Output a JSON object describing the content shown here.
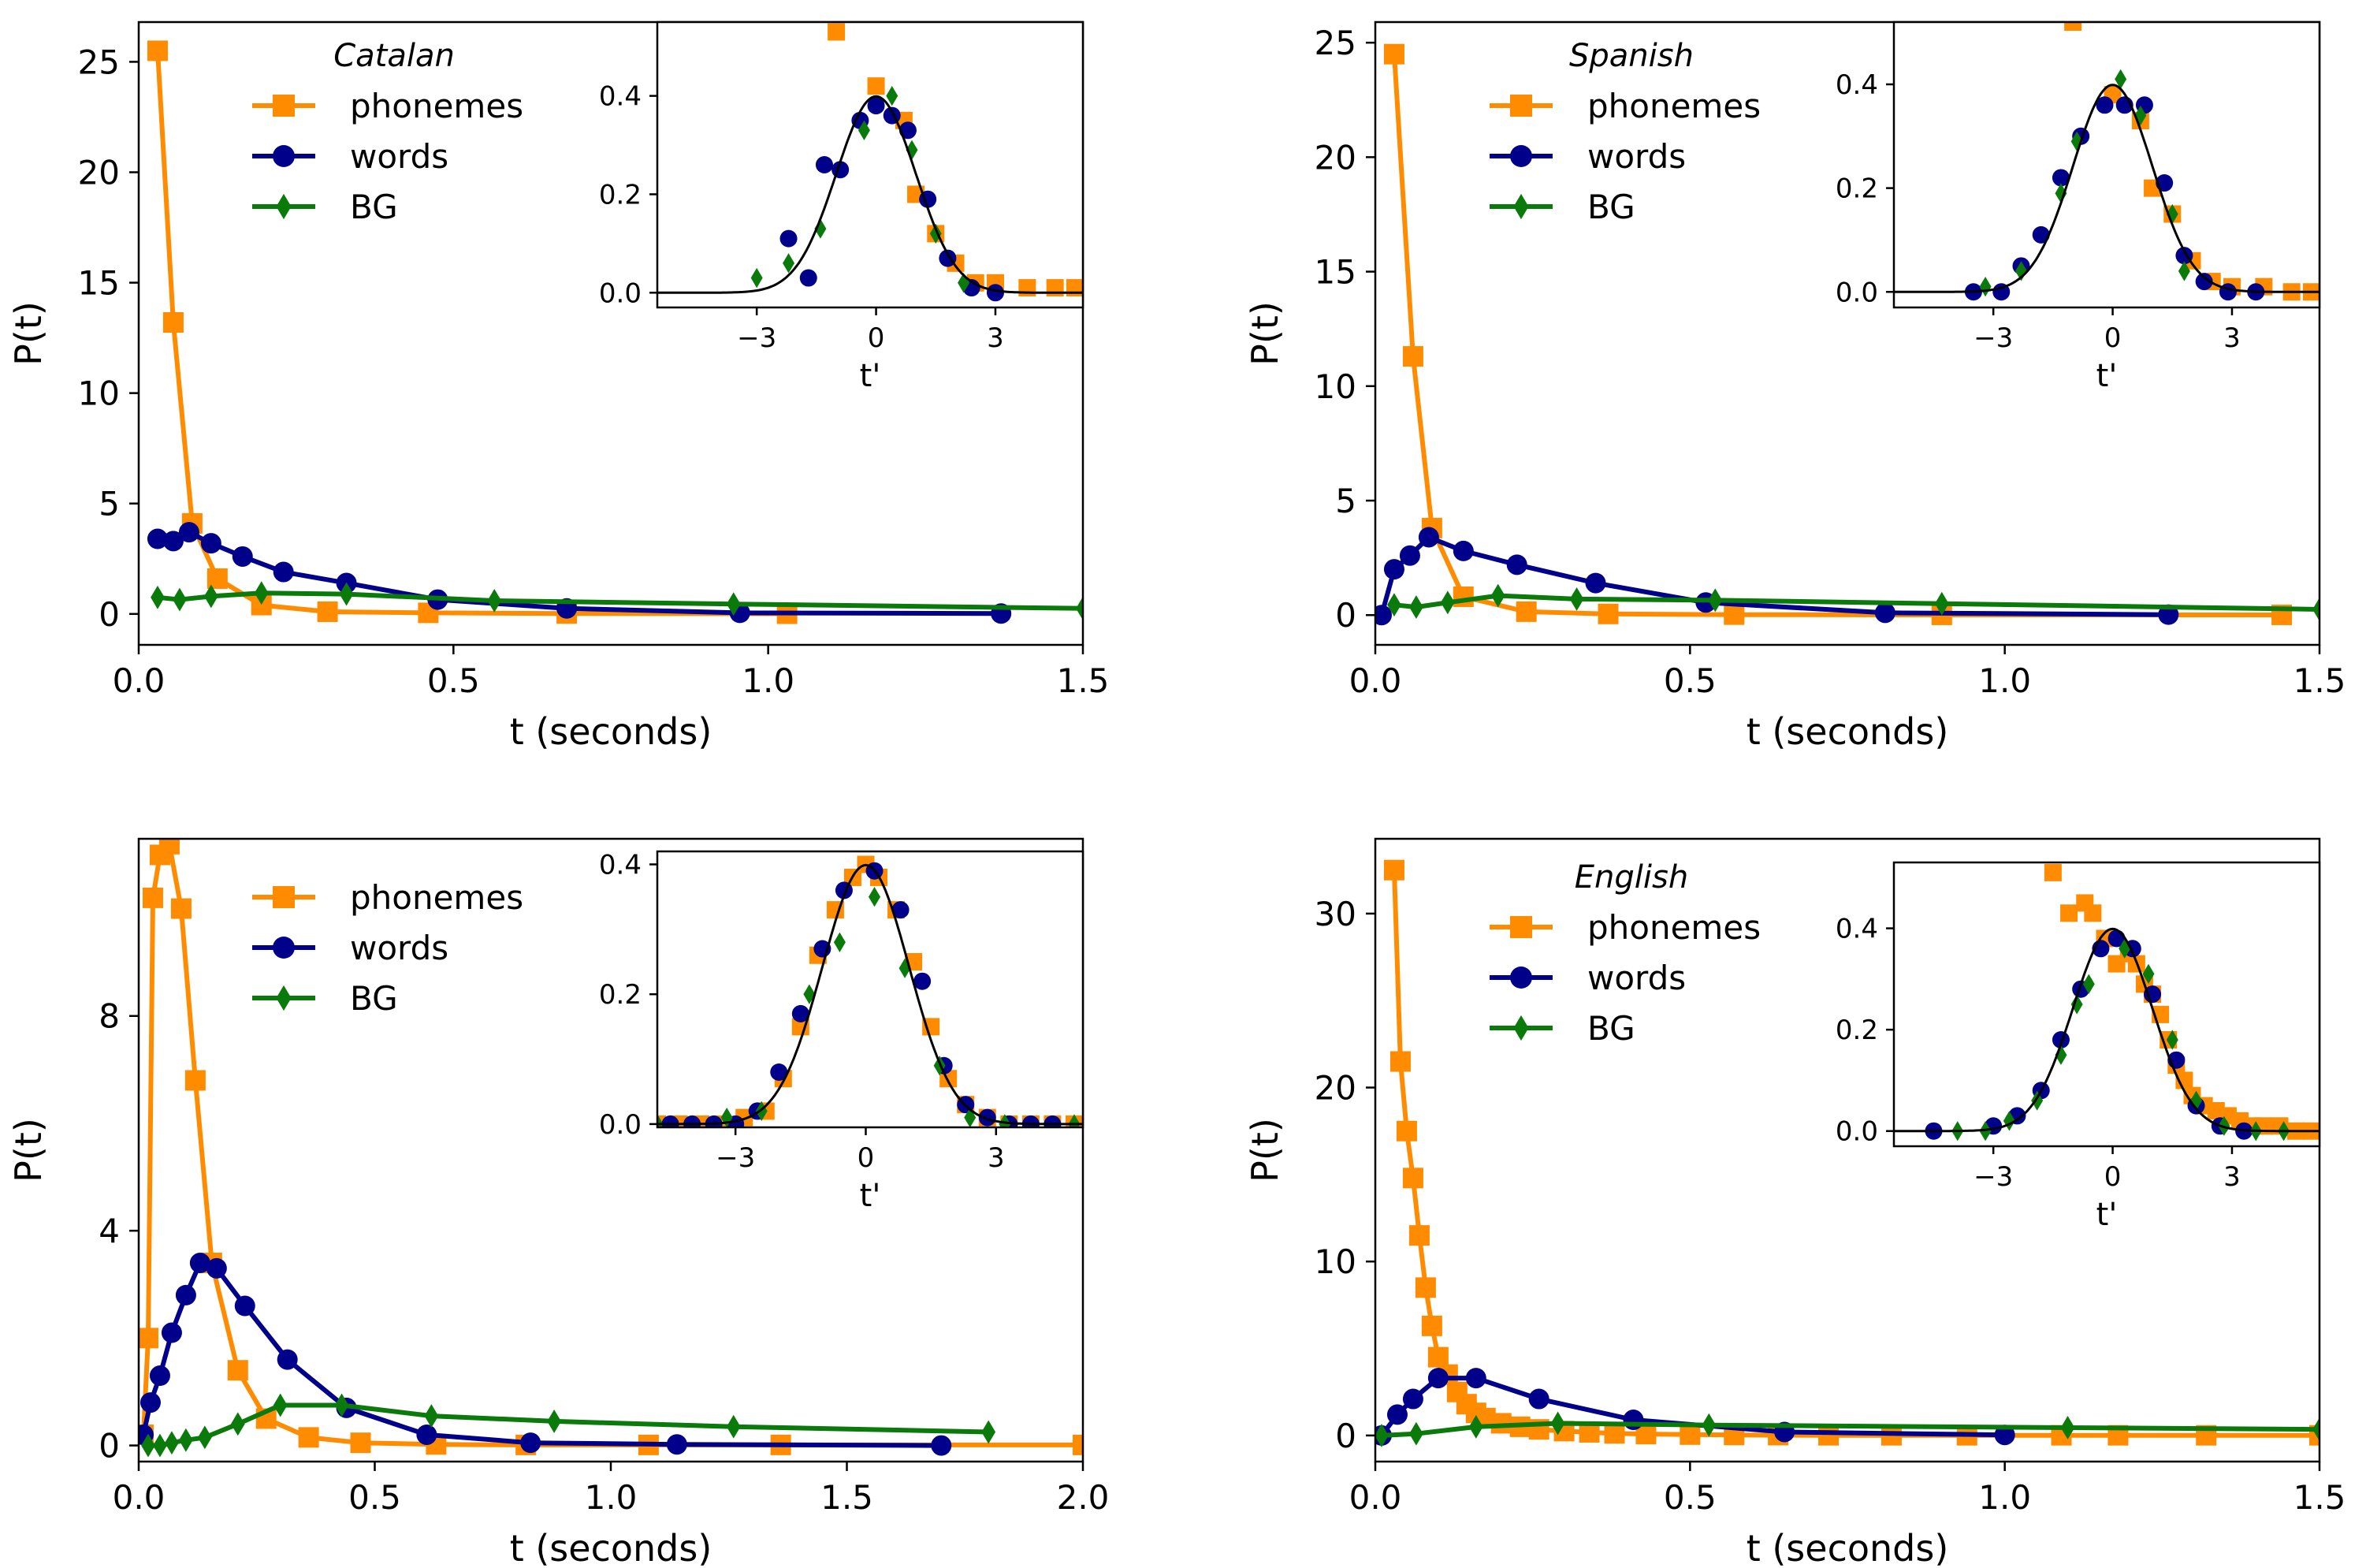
{
  "colors": {
    "phonemes": "#ff8c00",
    "words": "#00008b",
    "bg": "#0a7a0a",
    "fit": "#000000"
  },
  "chart_data": [
    {
      "type": "line",
      "title": "Catalan",
      "xlabel": "t (seconds)",
      "ylabel": "P(t)",
      "xlim": [
        0,
        1.5
      ],
      "ylim": [
        -1.4,
        26.8
      ],
      "xticks": [
        0,
        0.5,
        1.0,
        1.5
      ],
      "xtick_labels": [
        "0.0",
        "0.5",
        "1.0",
        "1.5"
      ],
      "yticks": [
        0,
        5,
        10,
        15,
        20,
        25
      ],
      "ytick_labels": [
        "0",
        "5",
        "10",
        "15",
        "20",
        "25"
      ],
      "legend": [
        "phonemes",
        "words",
        "BG"
      ],
      "series": [
        {
          "name": "phonemes",
          "x": [
            0.03,
            0.055,
            0.085,
            0.125,
            0.195,
            0.3,
            0.46,
            0.68,
            1.03
          ],
          "y": [
            25.5,
            13.2,
            4.1,
            1.6,
            0.4,
            0.1,
            0.05,
            0.02,
            0.01
          ]
        },
        {
          "name": "words",
          "x": [
            0.03,
            0.055,
            0.08,
            0.115,
            0.165,
            0.23,
            0.33,
            0.475,
            0.68,
            0.955,
            1.37
          ],
          "y": [
            3.4,
            3.3,
            3.7,
            3.2,
            2.6,
            1.9,
            1.4,
            0.65,
            0.25,
            0.05,
            0.02
          ]
        },
        {
          "name": "BG",
          "x": [
            0.03,
            0.065,
            0.115,
            0.195,
            0.33,
            0.565,
            0.945,
            1.5
          ],
          "y": [
            0.75,
            0.65,
            0.8,
            0.95,
            0.9,
            0.6,
            0.45,
            0.25
          ]
        }
      ],
      "inset": {
        "xlabel": "t'",
        "xlim": [
          -5.5,
          5.2
        ],
        "ylim": [
          -0.03,
          0.55
        ],
        "xticks": [
          -3,
          0,
          3
        ],
        "xtick_labels": [
          "−3",
          "0",
          "3"
        ],
        "yticks": [
          0,
          0.2,
          0.4
        ],
        "ytick_labels": [
          "0.0",
          "0.2",
          "0.4"
        ],
        "fit": "gaussian",
        "series": [
          {
            "name": "phonemes",
            "x": [
              -1.0,
              0.0,
              0.7,
              1.0,
              1.5,
              2.0,
              2.5,
              3.0,
              3.8,
              4.5,
              5.0
            ],
            "y": [
              0.53,
              0.42,
              0.35,
              0.2,
              0.12,
              0.06,
              0.02,
              0.02,
              0.01,
              0.01,
              0.01
            ]
          },
          {
            "name": "words",
            "x": [
              -2.2,
              -1.7,
              -1.3,
              -0.9,
              -0.4,
              0.0,
              0.4,
              0.8,
              1.3,
              1.8,
              2.4,
              3.0
            ],
            "y": [
              0.11,
              0.03,
              0.26,
              0.25,
              0.35,
              0.38,
              0.36,
              0.33,
              0.19,
              0.07,
              0.01,
              0.0
            ]
          },
          {
            "name": "BG",
            "x": [
              -3.0,
              -2.2,
              -1.4,
              -0.3,
              0.4,
              0.9,
              1.5,
              2.2
            ],
            "y": [
              0.03,
              0.06,
              0.13,
              0.33,
              0.4,
              0.29,
              0.12,
              0.02
            ]
          }
        ]
      }
    },
    {
      "type": "line",
      "title": "Spanish",
      "xlabel": "t (seconds)",
      "ylabel": "P(t)",
      "xlim": [
        0,
        1.5
      ],
      "ylim": [
        -1.3,
        25.9
      ],
      "xticks": [
        0,
        0.5,
        1.0,
        1.5
      ],
      "xtick_labels": [
        "0.0",
        "0.5",
        "1.0",
        "1.5"
      ],
      "yticks": [
        0,
        5,
        10,
        15,
        20,
        25
      ],
      "ytick_labels": [
        "0",
        "5",
        "10",
        "15",
        "20",
        "25"
      ],
      "legend": [
        "phonemes",
        "words",
        "BG"
      ],
      "series": [
        {
          "name": "phonemes",
          "x": [
            0.03,
            0.06,
            0.09,
            0.14,
            0.24,
            0.37,
            0.57,
            0.9,
            1.44
          ],
          "y": [
            24.5,
            11.3,
            3.8,
            0.8,
            0.15,
            0.05,
            0.02,
            0.01,
            0.01
          ]
        },
        {
          "name": "words",
          "x": [
            0.01,
            0.03,
            0.055,
            0.085,
            0.14,
            0.225,
            0.35,
            0.525,
            0.81,
            1.26
          ],
          "y": [
            0.0,
            2.0,
            2.6,
            3.4,
            2.8,
            2.2,
            1.4,
            0.55,
            0.1,
            0.02
          ]
        },
        {
          "name": "BG",
          "x": [
            0.03,
            0.065,
            0.115,
            0.195,
            0.32,
            0.54,
            0.9,
            1.5
          ],
          "y": [
            0.45,
            0.35,
            0.55,
            0.85,
            0.7,
            0.65,
            0.5,
            0.25
          ]
        }
      ],
      "inset": {
        "xlabel": "t'",
        "xlim": [
          -5.5,
          5.2
        ],
        "ylim": [
          -0.03,
          0.52
        ],
        "xticks": [
          -3,
          0,
          3
        ],
        "xtick_labels": [
          "−3",
          "0",
          "3"
        ],
        "yticks": [
          0,
          0.2,
          0.4
        ],
        "ytick_labels": [
          "0.0",
          "0.2",
          "0.4"
        ],
        "fit": "gaussian",
        "series": [
          {
            "name": "phonemes",
            "x": [
              -1.0,
              0.0,
              0.7,
              1.0,
              1.5,
              2.0,
              2.5,
              3.0,
              3.8,
              4.5,
              5.0
            ],
            "y": [
              0.52,
              0.38,
              0.33,
              0.2,
              0.15,
              0.06,
              0.02,
              0.01,
              0.01,
              0.0,
              0.0
            ]
          },
          {
            "name": "words",
            "x": [
              -3.5,
              -2.8,
              -2.3,
              -1.8,
              -1.3,
              -0.8,
              -0.2,
              0.3,
              0.8,
              1.3,
              1.8,
              2.3,
              2.9,
              3.6
            ],
            "y": [
              0.0,
              0.0,
              0.05,
              0.11,
              0.22,
              0.3,
              0.36,
              0.36,
              0.36,
              0.21,
              0.07,
              0.02,
              0.0,
              0.0
            ]
          },
          {
            "name": "BG",
            "x": [
              -3.2,
              -2.3,
              -1.3,
              -0.9,
              0.2,
              0.7,
              1.5,
              1.8
            ],
            "y": [
              0.01,
              0.04,
              0.19,
              0.29,
              0.41,
              0.34,
              0.15,
              0.04
            ]
          }
        ]
      }
    },
    {
      "type": "line",
      "title": "",
      "xlabel": "t (seconds)",
      "ylabel": "P(t)",
      "xlim": [
        0,
        2.0
      ],
      "ylim": [
        -0.3,
        11.3
      ],
      "xticks": [
        0,
        0.5,
        1.0,
        1.5,
        2.0
      ],
      "xtick_labels": [
        "0.0",
        "0.5",
        "1.0",
        "1.5",
        "2.0"
      ],
      "yticks": [
        0,
        4,
        8
      ],
      "ytick_labels": [
        "0",
        "4",
        "8"
      ],
      "legend": [
        "phonemes",
        "words",
        "BG"
      ],
      "series": [
        {
          "name": "phonemes",
          "x": [
            0.01,
            0.02,
            0.03,
            0.045,
            0.065,
            0.09,
            0.12,
            0.155,
            0.21,
            0.27,
            0.36,
            0.47,
            0.63,
            0.82,
            1.08,
            1.36,
            2.0
          ],
          "y": [
            0.2,
            2.0,
            10.2,
            11.0,
            11.2,
            10.0,
            6.8,
            3.4,
            1.4,
            0.5,
            0.15,
            0.05,
            0.02,
            0.01,
            0.01,
            0.01,
            0.01
          ]
        },
        {
          "name": "words",
          "x": [
            0.01,
            0.025,
            0.045,
            0.07,
            0.1,
            0.13,
            0.165,
            0.225,
            0.315,
            0.44,
            0.61,
            0.83,
            1.14,
            1.7
          ],
          "y": [
            0.2,
            0.8,
            1.3,
            2.1,
            2.8,
            3.4,
            3.3,
            2.6,
            1.6,
            0.7,
            0.2,
            0.05,
            0.02,
            0.0
          ]
        },
        {
          "name": "BG",
          "x": [
            0.02,
            0.045,
            0.07,
            0.1,
            0.14,
            0.21,
            0.3,
            0.43,
            0.62,
            0.88,
            1.26,
            1.8
          ],
          "y": [
            0.0,
            0.0,
            0.05,
            0.1,
            0.15,
            0.4,
            0.75,
            0.75,
            0.55,
            0.45,
            0.35,
            0.25
          ]
        }
      ],
      "inset": {
        "xlabel": "t'",
        "xlim": [
          -4.8,
          5.0
        ],
        "ylim": [
          -0.005,
          0.42
        ],
        "xticks": [
          -3,
          0,
          3
        ],
        "xtick_labels": [
          "−3",
          "0",
          "3"
        ],
        "yticks": [
          0,
          0.2,
          0.4
        ],
        "ytick_labels": [
          "0.0",
          "0.2",
          "0.4"
        ],
        "fit": "gaussian",
        "series": [
          {
            "name": "phonemes",
            "x": [
              -4.8,
              -4.3,
              -3.8,
              -3.3,
              -2.8,
              -2.3,
              -1.9,
              -1.5,
              -1.1,
              -0.7,
              -0.3,
              0.0,
              0.3,
              0.7,
              1.1,
              1.5,
              1.9,
              2.3,
              2.8,
              3.3,
              3.8,
              4.3,
              4.8
            ],
            "y": [
              0.0,
              0.0,
              0.0,
              0.0,
              0.01,
              0.02,
              0.07,
              0.15,
              0.26,
              0.33,
              0.38,
              0.4,
              0.38,
              0.33,
              0.25,
              0.15,
              0.07,
              0.03,
              0.01,
              0.0,
              0.0,
              0.0,
              0.0
            ]
          },
          {
            "name": "words",
            "x": [
              -4.5,
              -4.0,
              -3.5,
              -3.0,
              -2.5,
              -2.0,
              -1.5,
              -1.0,
              -0.5,
              0.2,
              0.8,
              1.3,
              1.8,
              2.3,
              2.8,
              3.3,
              3.8,
              4.3
            ],
            "y": [
              0.0,
              0.0,
              0.0,
              0.0,
              0.02,
              0.08,
              0.17,
              0.27,
              0.36,
              0.39,
              0.33,
              0.22,
              0.09,
              0.03,
              0.01,
              0.0,
              0.0,
              0.0
            ]
          },
          {
            "name": "BG",
            "x": [
              -4.8,
              -3.2,
              -2.4,
              -1.3,
              -0.6,
              0.2,
              0.9,
              1.7,
              2.4,
              3.2,
              4.8
            ],
            "y": [
              0.0,
              0.01,
              0.02,
              0.2,
              0.28,
              0.35,
              0.24,
              0.09,
              0.01,
              0.0,
              0.0
            ]
          }
        ]
      }
    },
    {
      "type": "line",
      "title": "English",
      "xlabel": "t (seconds)",
      "ylabel": "P(t)",
      "xlim": [
        0,
        1.5
      ],
      "ylim": [
        -1.5,
        34.3
      ],
      "xticks": [
        0,
        0.5,
        1.0,
        1.5
      ],
      "xtick_labels": [
        "0.0",
        "0.5",
        "1.0",
        "1.5"
      ],
      "yticks": [
        0,
        10,
        20,
        30
      ],
      "ytick_labels": [
        "0",
        "10",
        "20",
        "30"
      ],
      "legend": [
        "phonemes",
        "words",
        "BG"
      ],
      "series": [
        {
          "name": "phonemes",
          "x": [
            0.03,
            0.04,
            0.05,
            0.06,
            0.07,
            0.08,
            0.09,
            0.1,
            0.115,
            0.13,
            0.145,
            0.16,
            0.175,
            0.2,
            0.23,
            0.26,
            0.3,
            0.34,
            0.38,
            0.43,
            0.5,
            0.57,
            0.64,
            0.72,
            0.82,
            0.94,
            1.09,
            1.18,
            1.32,
            1.5
          ],
          "y": [
            32.5,
            21.5,
            17.5,
            14.8,
            11.5,
            8.5,
            6.3,
            4.5,
            3.5,
            2.5,
            1.8,
            1.3,
            1.0,
            0.7,
            0.5,
            0.35,
            0.25,
            0.18,
            0.12,
            0.08,
            0.05,
            0.03,
            0.02,
            0.01,
            0.01,
            0.01,
            0.01,
            0.01,
            0.01,
            0.01
          ]
        },
        {
          "name": "words",
          "x": [
            0.01,
            0.035,
            0.06,
            0.1,
            0.16,
            0.26,
            0.41,
            0.65,
            1.0
          ],
          "y": [
            0.0,
            1.2,
            2.1,
            3.3,
            3.3,
            2.1,
            0.9,
            0.2,
            0.03
          ]
        },
        {
          "name": "BG",
          "x": [
            0.01,
            0.065,
            0.16,
            0.29,
            0.53,
            1.1,
            1.5
          ],
          "y": [
            0.0,
            0.1,
            0.5,
            0.7,
            0.6,
            0.45,
            0.35
          ]
        }
      ],
      "inset": {
        "xlabel": "t'",
        "xlim": [
          -5.5,
          5.2
        ],
        "ylim": [
          -0.03,
          0.53
        ],
        "xticks": [
          -3,
          0,
          3
        ],
        "xtick_labels": [
          "−3",
          "0",
          "3"
        ],
        "yticks": [
          0,
          0.2,
          0.4
        ],
        "ytick_labels": [
          "0.0",
          "0.2",
          "0.4"
        ],
        "fit": "gaussian",
        "series": [
          {
            "name": "phonemes",
            "x": [
              -1.5,
              -1.1,
              -0.7,
              -0.5,
              -0.2,
              0.1,
              0.4,
              0.6,
              0.8,
              1.0,
              1.2,
              1.4,
              1.6,
              1.8,
              2.0,
              2.3,
              2.6,
              2.9,
              3.2,
              3.5,
              3.8,
              4.2,
              4.6,
              5.0
            ],
            "y": [
              0.51,
              0.43,
              0.45,
              0.43,
              0.38,
              0.33,
              0.35,
              0.33,
              0.29,
              0.27,
              0.23,
              0.18,
              0.13,
              0.1,
              0.07,
              0.05,
              0.04,
              0.03,
              0.02,
              0.01,
              0.01,
              0.01,
              0.0,
              0.0
            ]
          },
          {
            "name": "words",
            "x": [
              -4.5,
              -3.0,
              -2.4,
              -1.8,
              -1.3,
              -0.8,
              -0.3,
              0.1,
              0.5,
              1.0,
              1.6,
              2.1,
              2.7,
              3.3
            ],
            "y": [
              0.0,
              0.01,
              0.03,
              0.08,
              0.18,
              0.28,
              0.36,
              0.38,
              0.36,
              0.27,
              0.14,
              0.05,
              0.01,
              0.0
            ]
          },
          {
            "name": "BG",
            "x": [
              -3.9,
              -3.2,
              -2.6,
              -1.9,
              -1.3,
              -0.9,
              -0.6,
              0.3,
              0.9,
              1.5,
              2.1,
              2.8,
              3.6,
              4.3
            ],
            "y": [
              0.0,
              0.0,
              0.02,
              0.06,
              0.15,
              0.25,
              0.29,
              0.36,
              0.31,
              0.18,
              0.06,
              0.01,
              0.0,
              0.0
            ]
          }
        ]
      }
    }
  ]
}
